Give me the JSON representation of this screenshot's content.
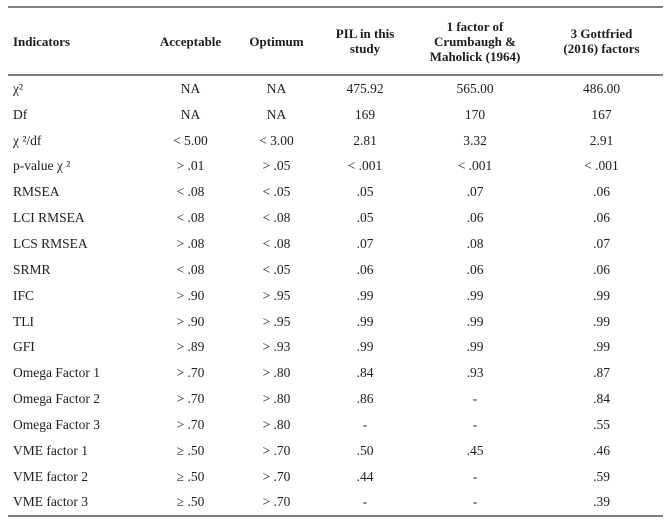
{
  "colors": {
    "background": "#ffffff",
    "text": "#1d1d1d",
    "rule": "#7f7f7f"
  },
  "table": {
    "columns": [
      {
        "label": "Indicators"
      },
      {
        "label": "Acceptable"
      },
      {
        "label": "Optimum"
      },
      {
        "label": "PIL in this study"
      },
      {
        "label": "1 factor of Crumbaugh & Maholick (1964)"
      },
      {
        "label": "3 Gottfried (2016) factors"
      }
    ],
    "rows": [
      {
        "indicator": "χ²",
        "values": [
          "NA",
          "NA",
          "475.92",
          "565.00",
          "486.00"
        ]
      },
      {
        "indicator": "Df",
        "values": [
          "NA",
          "NA",
          "169",
          "170",
          "167"
        ]
      },
      {
        "indicator": "χ ²/df",
        "values": [
          "< 5.00",
          "< 3.00",
          "2.81",
          "3.32",
          "2.91"
        ]
      },
      {
        "indicator": "p-value χ ²",
        "values": [
          "> .01",
          "> .05",
          "< .001",
          "< .001",
          "< .001"
        ]
      },
      {
        "indicator": "RMSEA",
        "values": [
          "< .08",
          "< .05",
          ".05",
          ".07",
          ".06"
        ]
      },
      {
        "indicator": "LCI RMSEA",
        "values": [
          "< .08",
          "< .08",
          ".05",
          ".06",
          ".06"
        ]
      },
      {
        "indicator": "LCS RMSEA",
        "values": [
          "> .08",
          "< .08",
          ".07",
          ".08",
          ".07"
        ]
      },
      {
        "indicator": "SRMR",
        "values": [
          "< .08",
          "< .05",
          ".06",
          ".06",
          ".06"
        ]
      },
      {
        "indicator": "IFC",
        "values": [
          "> .90",
          "> .95",
          ".99",
          ".99",
          ".99"
        ]
      },
      {
        "indicator": "TLI",
        "values": [
          "> .90",
          "> .95",
          ".99",
          ".99",
          ".99"
        ]
      },
      {
        "indicator": "GFI",
        "values": [
          "> .89",
          "> .93",
          ".99",
          ".99",
          ".99"
        ]
      },
      {
        "indicator": "Omega Factor 1",
        "values": [
          "> .70",
          "> .80",
          ".84",
          ".93",
          ".87"
        ]
      },
      {
        "indicator": "Omega Factor 2",
        "values": [
          "> .70",
          "> .80",
          ".86",
          "-",
          ".84"
        ]
      },
      {
        "indicator": "Omega Factor 3",
        "values": [
          "> .70",
          "> .80",
          "-",
          "-",
          ".55"
        ]
      },
      {
        "indicator": "VME factor 1",
        "values": [
          "≥ .50",
          "> .70",
          ".50",
          ".45",
          ".46"
        ]
      },
      {
        "indicator": "VME factor 2",
        "values": [
          "≥ .50",
          "> .70",
          ".44",
          "-",
          ".59"
        ]
      },
      {
        "indicator": "VME factor 3",
        "values": [
          "≥ .50",
          "> .70",
          "-",
          "-",
          ".39"
        ]
      }
    ]
  }
}
